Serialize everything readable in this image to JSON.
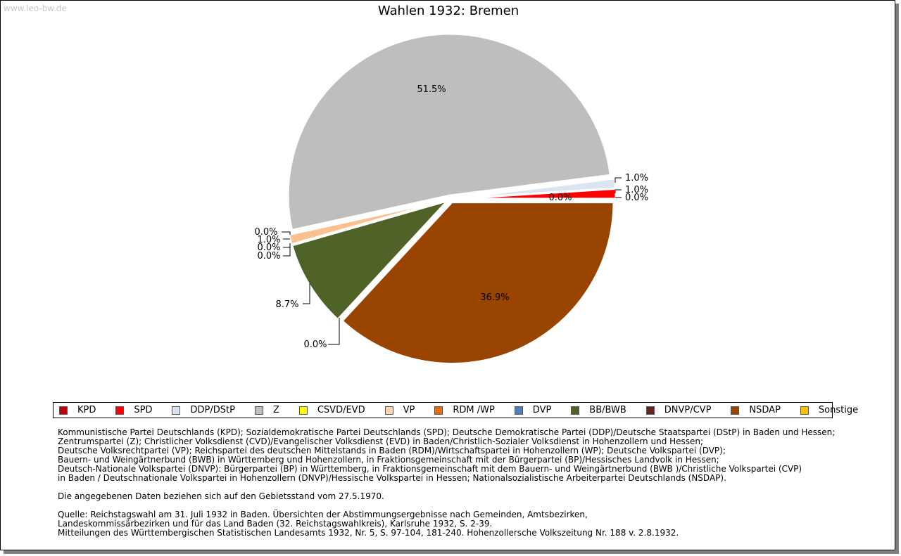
{
  "watermark": "www.leo-bw.de",
  "chart_data": {
    "type": "pie",
    "title": "Wahlen 1932: Bremen",
    "slices": [
      {
        "name": "NSDAP",
        "value": 36.9,
        "label": "36.9%",
        "color": "#994400"
      },
      {
        "name": "DNVP/CVP",
        "value": 0.0,
        "label": "0.0%",
        "color": "#662222"
      },
      {
        "name": "BB/BWB",
        "value": 8.7,
        "label": "8.7%",
        "color": "#4f6228"
      },
      {
        "name": "DVP",
        "value": 0.0,
        "label": "0.0%",
        "color": "#4f81bd"
      },
      {
        "name": "RDM /WP",
        "value": 0.0,
        "label": "0.0%",
        "color": "#e46c0a"
      },
      {
        "name": "Sonstige",
        "value": 1.0,
        "label": "1.0%",
        "color": "#fac090"
      },
      {
        "name": "VP",
        "value": 0.0,
        "label": "0.0%",
        "color": "#fbd5b5"
      },
      {
        "name": "CSVD/EVD",
        "value": 0.0,
        "label": "0.0%",
        "color": "#ffff00"
      },
      {
        "name": "Z",
        "value": 51.5,
        "label": "51.5%",
        "color": "#bebebe"
      },
      {
        "name": "DDP/DStP",
        "value": 1.0,
        "label": "1.0%",
        "color": "#dbe5f1"
      },
      {
        "name": "SPD",
        "value": 1.0,
        "label": "1.0%",
        "color": "#ff0000"
      },
      {
        "name": "KPD",
        "value": 0.0,
        "label": "0.0%",
        "color": "#c00000"
      }
    ],
    "legend": [
      {
        "name": "KPD",
        "color": "#c00000"
      },
      {
        "name": "SPD",
        "color": "#ff0000"
      },
      {
        "name": "DDP/DStP",
        "color": "#dbe5f1"
      },
      {
        "name": "Z",
        "color": "#bebebe"
      },
      {
        "name": "CSVD/EVD",
        "color": "#ffff00"
      },
      {
        "name": "VP",
        "color": "#fbd5b5"
      },
      {
        "name": "RDM /WP",
        "color": "#e46c0a"
      },
      {
        "name": "DVP",
        "color": "#4f81bd"
      },
      {
        "name": "BB/BWB",
        "color": "#4f6228"
      },
      {
        "name": "DNVP/CVP",
        "color": "#632523"
      },
      {
        "name": "NSDAP",
        "color": "#994400"
      },
      {
        "name": "Sonstige",
        "color": "#ffc000"
      }
    ],
    "legend_position": "bottom"
  },
  "notes": [
    "Kommunistische Partei Deutschlands (KPD); Sozialdemokratische Partei Deutschlands (SPD); Deutsche Demokratische Partei (DDP)/Deutsche Staatspartei (DStP) in Baden und Hessen;",
    "Zentrumspartei (Z); Christlicher Volksdienst (CVD)/Evangelischer Volksdienst (EVD) in Baden/Christlich-Sozialer Volksdienst in Hohenzollern und Hessen;",
    "Deutsche Volksrechtpartei (VP); Reichspartei des deutschen Mittelstands in Baden (RDM)/Wirtschaftspartei in Hohenzollern (WP); Deutsche Volkspartei (DVP);",
    "Bauern- und Weingärtnerbund (BWB) in Württemberg und Hohenzollern, in Fraktionsgemeinschaft mit der Bürgerpartei (BP)/Hessisches Landvolk in Hessen;",
    "Deutsch-Nationale Volkspartei (DNVP): Bürgerpartei (BP) in Württemberg, in Fraktionsgemeinschaft mit dem Bauern- und Weingärtnerbund (BWB )/Christliche Volkspartei (CVP)",
    "in Baden / Deutschnationale Volkspartei in Hohenzollern (DNVP)/Hessische Volkspartei in Hessen; Nationalsozialistische Arbeiterpartei Deutschlands (NSDAP).",
    "",
    "Die angegebenen Daten beziehen sich auf den Gebietsstand vom 27.5.1970.",
    "",
    "Quelle: Reichstagswahl am 31. Juli 1932 in Baden. Übersichten der Abstimmungsergebnisse nach Gemeinden, Amtsbezirken,",
    "Landeskommissärbezirken und für das Land Baden (32. Reichstagswahlkreis), Karlsruhe 1932, S. 2-39.",
    "Mitteilungen des Württembergischen Statistischen Landesamts 1932, Nr. 5, S. 97-104, 181-240. Hohenzollersche Volkszeitung Nr. 188 v. 2.8.1932."
  ]
}
